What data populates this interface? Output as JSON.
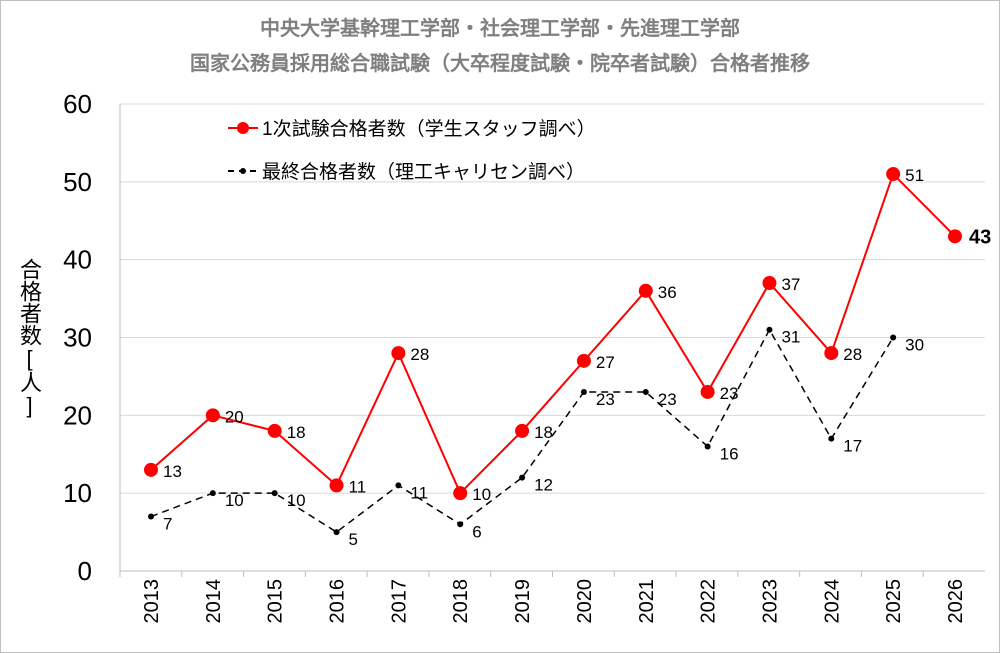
{
  "chart_data": {
    "type": "line",
    "title_line1": "中央大学基幹理工学部・社会理工学部・先進理工学部",
    "title_line2": "国家公務員採用総合職試験（大卒程度試験・院卒者試験）合格者推移",
    "ylabel": "合格者数[人]",
    "xlabel": "",
    "ylim": [
      0,
      60
    ],
    "yticks": [
      "0",
      "10",
      "20",
      "30",
      "40",
      "50",
      "60"
    ],
    "grid": true,
    "legend_position": "top-left",
    "categories": [
      "2013",
      "2014",
      "2015",
      "2016",
      "2017",
      "2018",
      "2019",
      "2020",
      "2021",
      "2022",
      "2023",
      "2024",
      "2025",
      "2026"
    ],
    "series": [
      {
        "name": "1次試験合格者数（学生スタッフ調べ）",
        "color": "#ff0000",
        "style": "solid",
        "values": [
          13,
          20,
          18,
          11,
          28,
          10,
          18,
          27,
          36,
          23,
          37,
          28,
          51,
          43
        ]
      },
      {
        "name": "最終合格者数（理工キャリセン調べ）",
        "color": "#000000",
        "style": "dashed",
        "values": [
          7,
          10,
          10,
          5,
          11,
          6,
          12,
          23,
          23,
          16,
          31,
          17,
          30,
          null
        ]
      }
    ]
  }
}
